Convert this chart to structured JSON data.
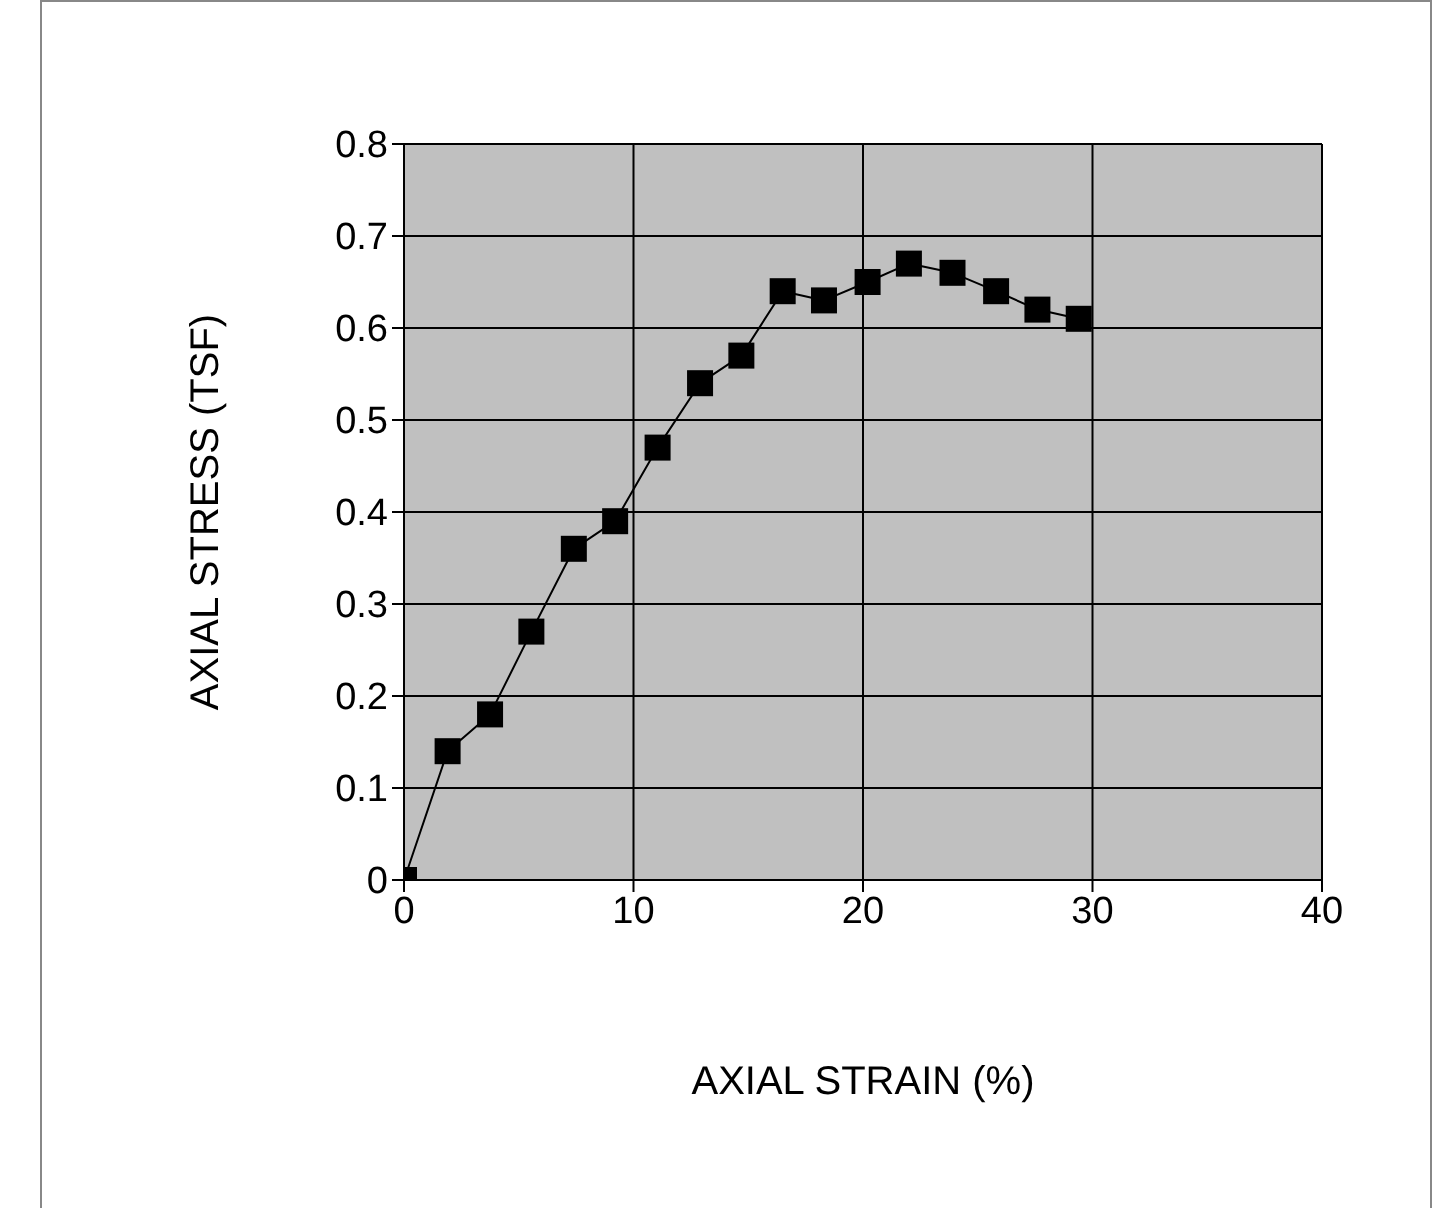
{
  "chart_data": {
    "type": "line",
    "xlabel": "AXIAL STRAIN (%)",
    "ylabel": "AXIAL STRESS (TSF)",
    "x": [
      0,
      1.9,
      3.75,
      5.55,
      7.4,
      9.2,
      11.05,
      12.9,
      14.7,
      16.5,
      18.3,
      20.2,
      22.0,
      23.9,
      25.8,
      27.6,
      29.4
    ],
    "series": [
      {
        "color": "#000000",
        "values": [
          0,
          0.14,
          0.18,
          0.27,
          0.36,
          0.39,
          0.47,
          0.54,
          0.57,
          0.64,
          0.63,
          0.65,
          0.67,
          0.66,
          0.64,
          0.62,
          0.61
        ]
      }
    ],
    "xlim": [
      0,
      40
    ],
    "xticks": [
      0,
      10,
      20,
      30,
      40
    ],
    "ylim": [
      0,
      0.8
    ],
    "yticks": [
      0,
      0.1,
      0.2,
      0.3,
      0.4,
      0.5,
      0.6,
      0.7,
      0.8
    ],
    "grid": true,
    "marker": "square",
    "line_style": "solid"
  }
}
